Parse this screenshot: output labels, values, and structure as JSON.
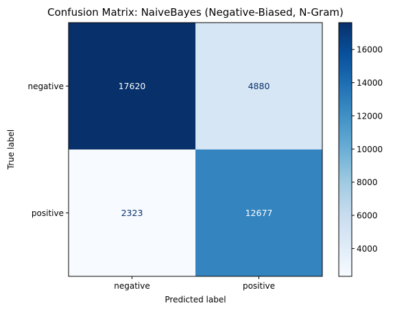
{
  "chart_data": {
    "type": "heatmap",
    "title": "Confusion Matrix: NaiveBayes (Negative-Biased, N-Gram)",
    "xlabel": "Predicted label",
    "ylabel": "True label",
    "x_categories": [
      "negative",
      "positive"
    ],
    "y_categories": [
      "negative",
      "positive"
    ],
    "values": [
      [
        17620,
        4880
      ],
      [
        2323,
        12677
      ]
    ],
    "colormap": "Blues",
    "colorbar": {
      "min": 2323,
      "max": 17620,
      "ticks": [
        4000,
        6000,
        8000,
        10000,
        12000,
        14000,
        16000
      ],
      "tick_labels": [
        "4000",
        "6000",
        "8000",
        "10000",
        "12000",
        "14000",
        "16000"
      ]
    }
  }
}
